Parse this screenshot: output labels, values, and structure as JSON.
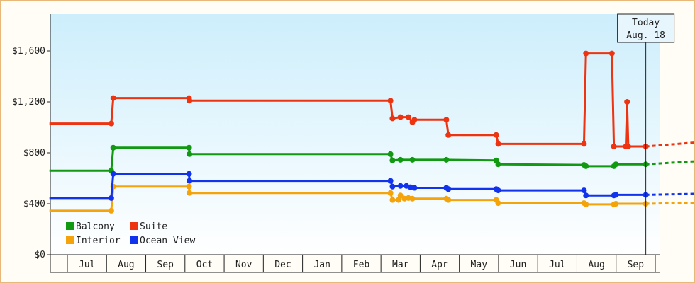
{
  "chart_data": {
    "type": "line",
    "step": true,
    "title": "",
    "xlabel": "",
    "ylabel": "",
    "x_ticks": [
      "Jul",
      "Aug",
      "Sep",
      "Oct",
      "Nov",
      "Dec",
      "Jan",
      "Feb",
      "Mar",
      "Apr",
      "May",
      "Jun",
      "Jul",
      "Aug",
      "Sep"
    ],
    "y_ticks": [
      "$0",
      "$400",
      "$800",
      "$1,200",
      "$1,600"
    ],
    "ylim": [
      0,
      1600
    ],
    "grid": false,
    "legend_position": "bottom-left",
    "today_marker": {
      "line1": "Today",
      "line2": "Aug. 18",
      "x": 14.5
    },
    "series": [
      {
        "name": "Balcony",
        "color": "#119911",
        "points": [
          [
            -0.45,
            660
          ],
          [
            1.1,
            660
          ],
          [
            1.15,
            840
          ],
          [
            3.05,
            840
          ],
          [
            3.06,
            790
          ],
          [
            8.1,
            790
          ],
          [
            8.15,
            740
          ],
          [
            8.35,
            745
          ],
          [
            8.65,
            745
          ],
          [
            9.5,
            745
          ],
          [
            10.75,
            740
          ],
          [
            10.8,
            710
          ],
          [
            12.95,
            705
          ],
          [
            13.0,
            695
          ],
          [
            13.7,
            695
          ],
          [
            13.75,
            710
          ],
          [
            14.5,
            710
          ]
        ],
        "projection": [
          [
            14.5,
            710
          ],
          [
            16.1,
            740
          ]
        ]
      },
      {
        "name": "Suite",
        "color": "#ee3311",
        "points": [
          [
            -0.45,
            1030
          ],
          [
            1.1,
            1030
          ],
          [
            1.15,
            1230
          ],
          [
            3.05,
            1230
          ],
          [
            3.06,
            1210
          ],
          [
            8.1,
            1210
          ],
          [
            8.15,
            1070
          ],
          [
            8.35,
            1080
          ],
          [
            8.55,
            1080
          ],
          [
            8.65,
            1040
          ],
          [
            8.7,
            1060
          ],
          [
            9.5,
            1060
          ],
          [
            9.55,
            940
          ],
          [
            10.75,
            940
          ],
          [
            10.8,
            870
          ],
          [
            12.95,
            870
          ],
          [
            13.0,
            1580
          ],
          [
            13.65,
            1580
          ],
          [
            13.7,
            850
          ],
          [
            14.0,
            850
          ],
          [
            14.03,
            1200
          ],
          [
            14.06,
            850
          ],
          [
            14.5,
            850
          ]
        ],
        "projection": [
          [
            14.5,
            850
          ],
          [
            16.1,
            890
          ]
        ]
      },
      {
        "name": "Interior",
        "color": "#f5a30a",
        "points": [
          [
            -0.45,
            345
          ],
          [
            1.1,
            345
          ],
          [
            1.15,
            535
          ],
          [
            3.05,
            535
          ],
          [
            3.06,
            485
          ],
          [
            8.1,
            485
          ],
          [
            8.15,
            430
          ],
          [
            8.3,
            430
          ],
          [
            8.35,
            465
          ],
          [
            8.45,
            440
          ],
          [
            8.55,
            445
          ],
          [
            8.65,
            440
          ],
          [
            9.5,
            440
          ],
          [
            9.55,
            430
          ],
          [
            10.75,
            430
          ],
          [
            10.8,
            405
          ],
          [
            12.95,
            405
          ],
          [
            13.0,
            395
          ],
          [
            13.7,
            395
          ],
          [
            13.75,
            400
          ],
          [
            14.5,
            400
          ]
        ],
        "projection": [
          [
            14.5,
            400
          ],
          [
            16.1,
            410
          ]
        ]
      },
      {
        "name": "Ocean View",
        "color": "#1133ee",
        "points": [
          [
            -0.45,
            445
          ],
          [
            1.1,
            445
          ],
          [
            1.15,
            635
          ],
          [
            3.05,
            635
          ],
          [
            3.06,
            580
          ],
          [
            8.1,
            580
          ],
          [
            8.15,
            535
          ],
          [
            8.35,
            540
          ],
          [
            8.5,
            540
          ],
          [
            8.6,
            530
          ],
          [
            8.7,
            525
          ],
          [
            9.5,
            525
          ],
          [
            9.55,
            515
          ],
          [
            10.75,
            515
          ],
          [
            10.8,
            505
          ],
          [
            12.95,
            505
          ],
          [
            13.0,
            465
          ],
          [
            13.7,
            465
          ],
          [
            13.75,
            470
          ],
          [
            14.5,
            470
          ]
        ],
        "projection": [
          [
            14.5,
            470
          ],
          [
            16.1,
            480
          ]
        ]
      }
    ]
  }
}
